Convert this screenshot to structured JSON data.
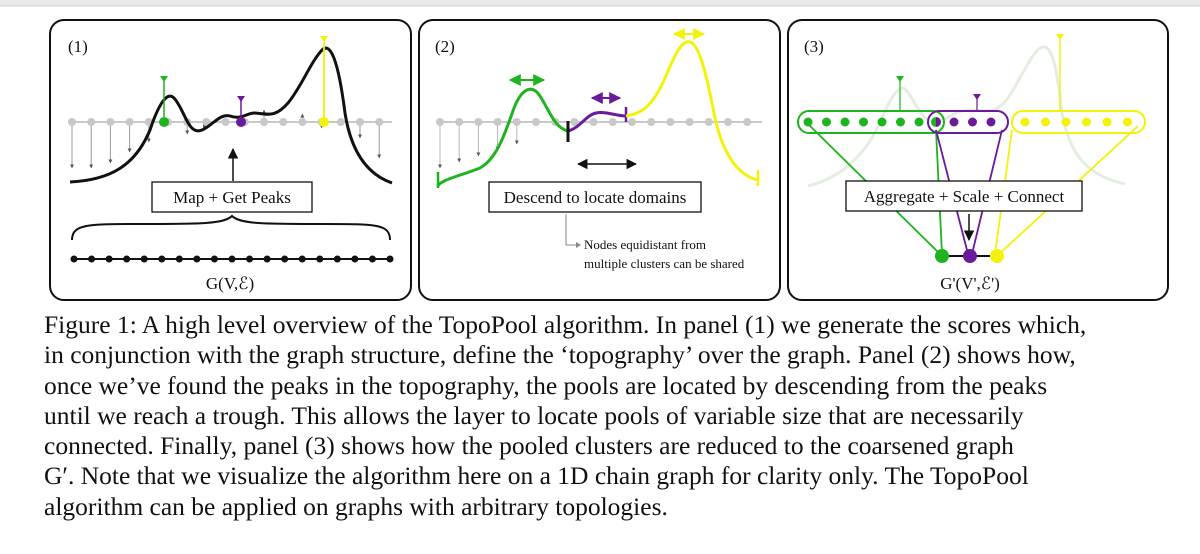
{
  "panels": [
    {
      "number": "(1)",
      "box_label": "Map + Get Peaks",
      "graph_label": "G(V,ℰ)"
    },
    {
      "number": "(2)",
      "box_label": "Descend to locate domains",
      "note_line1": "Nodes equidistant from",
      "note_line2": "multiple clusters can be shared"
    },
    {
      "number": "(3)",
      "box_label": "Aggregate + Scale + Connect",
      "graph_label": "G'(V',ℰ')"
    }
  ],
  "colors": {
    "green": "#1db41d",
    "purple": "#6a1b9a",
    "yellow": "#f2f20a",
    "node_gray": "#c8c8c8"
  },
  "caption": {
    "lines": [
      "Figure 1: A high level overview of the TopoPool algorithm. In panel (1) we generate the scores which,",
      "in conjunction with the graph structure, define the ‘topography’ over the graph. Panel (2) shows how,",
      "once we’ve found the peaks in the topography, the pools are located by descending from the peaks",
      "until we reach a trough. This allows the layer to locate pools of variable size that are necessarily",
      "connected. Finally, panel (3) shows how the pooled clusters are reduced to the coarsened graph",
      "G′. Note that we visualize the algorithm here on a 1D chain graph for clarity only. The TopoPool",
      "algorithm can be applied on graphs with arbitrary topologies."
    ]
  }
}
